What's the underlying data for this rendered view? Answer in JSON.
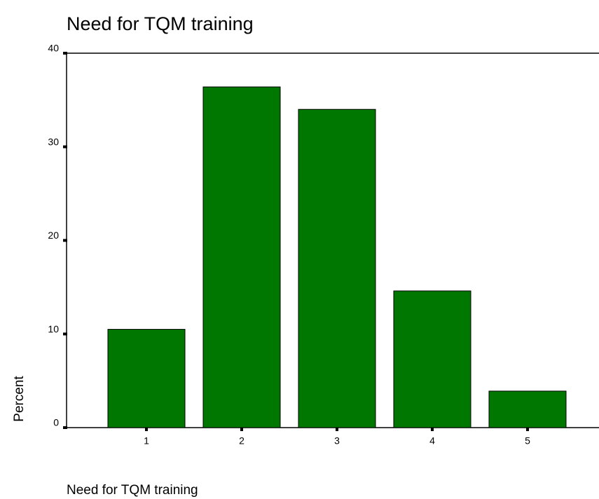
{
  "chart_data": {
    "type": "bar",
    "title": "Need for TQM training",
    "x_label": "Need for TQM training",
    "y_label": "Percent",
    "categories": [
      "1",
      "2",
      "3",
      "4",
      "5"
    ],
    "values": [
      10.5,
      36.4,
      34.0,
      14.6,
      3.9
    ],
    "color": "#007700",
    "ylim": [
      0,
      40
    ],
    "yticks": [
      0,
      10,
      20,
      30,
      40
    ],
    "grid": false
  }
}
